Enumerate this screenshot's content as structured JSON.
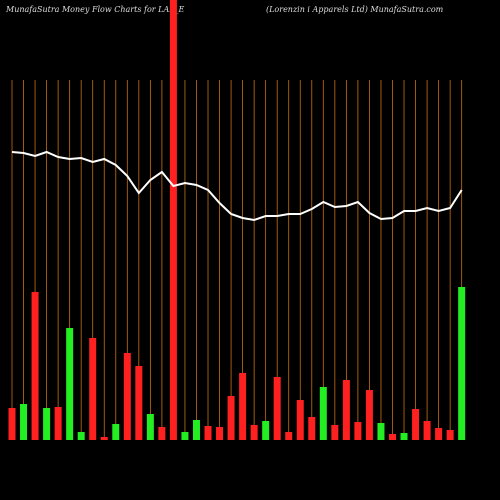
{
  "chart_data": {
    "type": "bar",
    "title": "MunafaSutra  Money Flow  Charts for LAL_E",
    "subtitle": "(Lorenzin    i Apparels Ltd) MunafaSutra.com",
    "ylim": [
      0,
      440
    ],
    "series": [
      {
        "name": "money flow",
        "colors": [
          "#ff2020",
          "#22ee22",
          "#ff2020",
          "#22ee22",
          "#ff2020",
          "#22ee22",
          "#22ee22",
          "#ff2020",
          "#ff2020",
          "#22ee22",
          "#ff2020",
          "#ff2020",
          "#22ee22",
          "#ff2020",
          "#ff2020",
          "#22ee22",
          "#22ee22",
          "#ff2020",
          "#ff2020",
          "#ff2020",
          "#ff2020",
          "#ff2020",
          "#22ee22",
          "#ff2020",
          "#ff2020",
          "#ff2020",
          "#ff2020",
          "#22ee22",
          "#ff2020",
          "#ff2020",
          "#ff2020",
          "#ff2020",
          "#22ee22",
          "#ff2020",
          "#22ee22",
          "#ff2020",
          "#ff2020",
          "#ff2020",
          "#ff2020",
          "#22ee22"
        ],
        "values": [
          32,
          36,
          148,
          32,
          33,
          112,
          8,
          102,
          3,
          16,
          87,
          74,
          26,
          13,
          440,
          8,
          20,
          14,
          13,
          44,
          67,
          15,
          19,
          63,
          8,
          40,
          23,
          53,
          15,
          60,
          18,
          50,
          17,
          6,
          7,
          31,
          19,
          12,
          10,
          153
        ]
      },
      {
        "name": "price",
        "color": "#ffffff",
        "values": [
          288,
          287,
          284,
          288,
          283,
          281,
          282,
          278,
          281,
          275,
          264,
          247,
          260,
          268,
          254,
          257,
          255,
          250,
          237,
          226,
          222,
          220,
          224,
          224,
          226,
          226,
          231,
          238,
          233,
          234,
          238,
          227,
          221,
          222,
          229,
          229,
          232,
          229,
          232,
          250
        ]
      }
    ]
  }
}
